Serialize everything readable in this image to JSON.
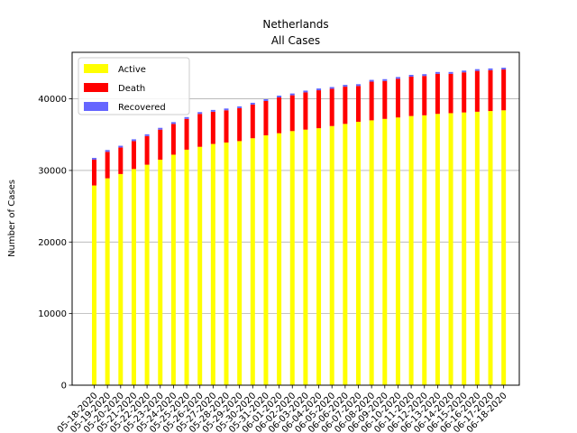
{
  "chart_data": {
    "type": "bar",
    "stacked": true,
    "title": "Netherlands",
    "subtitle": "All Cases",
    "xlabel": "",
    "ylabel": "Number of Cases",
    "ylim": [
      0,
      46500
    ],
    "yticks": [
      0,
      10000,
      20000,
      30000,
      40000
    ],
    "grid": "y",
    "legend_position": "top-left",
    "categories": [
      "05-18-2020",
      "05-19-2020",
      "05-20-2020",
      "05-21-2020",
      "05-22-2020",
      "05-23-2020",
      "05-24-2020",
      "05-25-2020",
      "05-26-2020",
      "05-27-2020",
      "05-28-2020",
      "05-29-2020",
      "05-30-2020",
      "05-31-2020",
      "06-01-2020",
      "06-02-2020",
      "06-03-2020",
      "06-04-2020",
      "06-05-2020",
      "06-06-2020",
      "06-07-2020",
      "06-08-2020",
      "06-09-2020",
      "06-10-2020",
      "06-11-2020",
      "06-12-2020",
      "06-13-2020",
      "06-14-2020",
      "06-15-2020",
      "06-16-2020",
      "06-17-2020",
      "06-18-2020"
    ],
    "series": [
      {
        "name": "Active",
        "color": "#ffff00",
        "values": [
          27900,
          28900,
          29500,
          30200,
          30800,
          31500,
          32200,
          32900,
          33300,
          33700,
          33900,
          34100,
          34500,
          34900,
          35200,
          35500,
          35700,
          35900,
          36200,
          36500,
          36800,
          37000,
          37200,
          37400,
          37600,
          37700,
          37900,
          38000,
          38100,
          38200,
          38300,
          38400
        ]
      },
      {
        "name": "Death",
        "color": "#ff0000",
        "values": [
          3600,
          3700,
          3700,
          3900,
          4000,
          4200,
          4300,
          4300,
          4600,
          4500,
          4500,
          4600,
          4700,
          4800,
          5000,
          5000,
          5200,
          5300,
          5200,
          5200,
          5000,
          5400,
          5300,
          5400,
          5500,
          5500,
          5600,
          5500,
          5600,
          5700,
          5700,
          5700
        ]
      },
      {
        "name": "Recovered",
        "color": "#6666ff",
        "values": [
          250,
          250,
          250,
          250,
          250,
          250,
          250,
          250,
          250,
          250,
          250,
          250,
          250,
          250,
          250,
          250,
          250,
          250,
          250,
          250,
          250,
          250,
          250,
          250,
          250,
          250,
          250,
          250,
          250,
          250,
          250,
          250
        ]
      }
    ]
  }
}
